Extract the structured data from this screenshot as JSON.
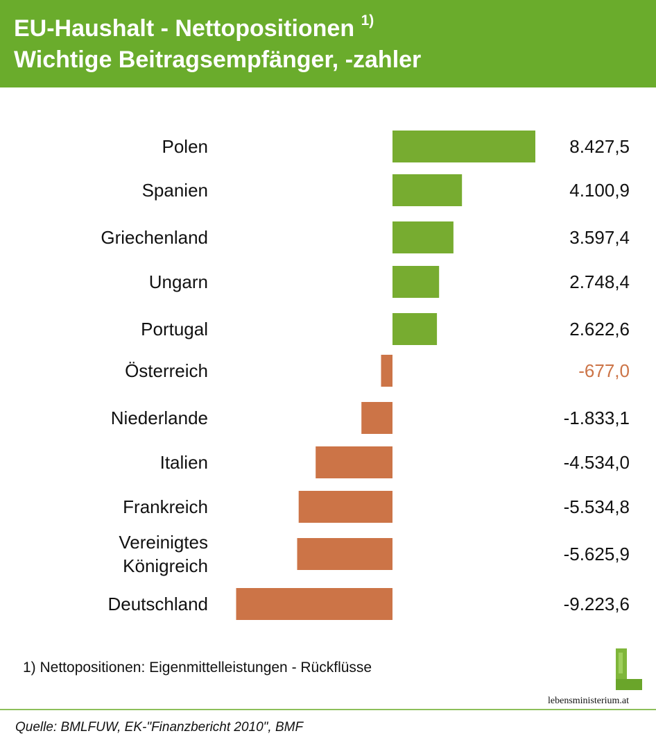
{
  "title": {
    "line1": "EU-Haushalt - Nettopositionen",
    "line1_sup": "1)",
    "line2": "Wichtige Beitragsempfänger, -zahler"
  },
  "chart_data": {
    "type": "bar",
    "orientation": "horizontal",
    "categories": [
      "Polen",
      "Spanien",
      "Griechenland",
      "Ungarn",
      "Portugal",
      "Österreich",
      "Niederlande",
      "Italien",
      "Frankreich",
      "Vereinigtes Königreich",
      "Deutschland"
    ],
    "category_lines": [
      [
        "Polen"
      ],
      [
        "Spanien"
      ],
      [
        "Griechenland"
      ],
      [
        "Ungarn"
      ],
      [
        "Portugal"
      ],
      [
        "Österreich"
      ],
      [
        "Niederlande"
      ],
      [
        "Italien"
      ],
      [
        "Frankreich"
      ],
      [
        "Vereinigtes",
        "Königreich"
      ],
      [
        "Deutschland"
      ]
    ],
    "values": [
      8427.5,
      4100.9,
      3597.4,
      2748.4,
      2622.6,
      -677.0,
      -1833.1,
      -4534.0,
      -5534.8,
      -5625.9,
      -9223.6
    ],
    "value_labels": [
      "8.427,5",
      "4.100,9",
      "3.597,4",
      "2.748,4",
      "2.622,6",
      "-677,0",
      "-1.833,1",
      "-4.534,0",
      "-5.534,8",
      "-5.625,9",
      "-9.223,6"
    ],
    "highlight_category": "Österreich",
    "colors": {
      "positive": "#77ac30",
      "negative": "#cc7447",
      "highlight_label": "#cc7447"
    },
    "xlim": [
      -9223.6,
      8427.5
    ],
    "grid": false,
    "legend": "none"
  },
  "footnote": "1) Nettopositionen: Eigenmittelleistungen - Rückflüsse",
  "source": "Quelle: BMLFUW, EK-\"Finanzbericht 2010\", BMF",
  "logo": {
    "text": "lebensministerium.at",
    "icon": "leaf-l-logo"
  },
  "colors": {
    "header_bg": "#6aac2c",
    "header_text": "#ffffff",
    "rule": "#8dbf5a"
  }
}
